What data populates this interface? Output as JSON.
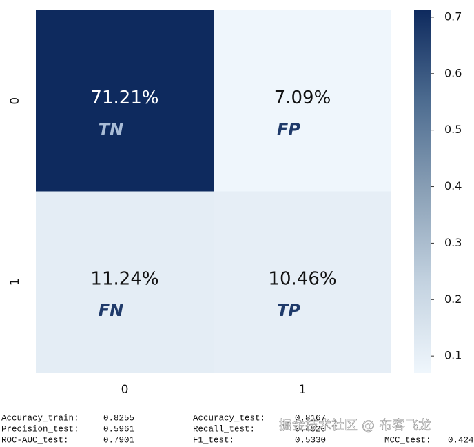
{
  "chart_data": {
    "type": "heatmap",
    "x_categories": [
      "0",
      "1"
    ],
    "y_categories": [
      "0",
      "1"
    ],
    "values": [
      [
        0.7121,
        0.0709
      ],
      [
        0.1124,
        0.1046
      ]
    ],
    "value_labels": [
      [
        "71.21%",
        "7.09%"
      ],
      [
        "11.24%",
        "10.46%"
      ]
    ],
    "annotations": [
      [
        "TN",
        "FP"
      ],
      [
        "FN",
        "TP"
      ]
    ],
    "colorscale": [
      "#eff6fc",
      "#c3d2e0",
      "#8aa0b6",
      "#4d6c90",
      "#0e2a5e"
    ],
    "clim": [
      0.0709,
      0.7121
    ],
    "cticks": [
      0.1,
      0.2,
      0.3,
      0.4,
      0.5,
      0.6,
      0.7
    ]
  },
  "metrics": [
    [
      [
        "Accuracy_train:",
        "0.8255"
      ],
      [
        "Accuracy_test:",
        "0.8167"
      ]
    ],
    [
      [
        "Precision_test:",
        "0.5961"
      ],
      [
        "Recall_test:",
        "0.4820"
      ]
    ],
    [
      [
        "ROC-AUC_test:",
        "0.7901"
      ],
      [
        "F1_test:",
        "0.5330"
      ],
      [
        "MCC_test:",
        "0.424"
      ]
    ]
  ],
  "watermark": "掘金技术社区 @ 布客飞龙"
}
